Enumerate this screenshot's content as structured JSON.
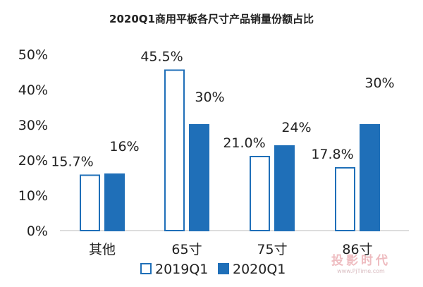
{
  "chart_data": {
    "type": "bar",
    "title": "2020Q1商用平板各尺寸产品销量份额占比",
    "categories": [
      "其他",
      "65寸",
      "75寸",
      "86寸"
    ],
    "series": [
      {
        "name": "2019Q1",
        "values": [
          15.7,
          45.5,
          21.0,
          17.8
        ],
        "labels": [
          "15.7%",
          "45.5%",
          "21.0%",
          "17.8%"
        ],
        "color": "#ffffff",
        "stroke": "#1f6fb8"
      },
      {
        "name": "2020Q1",
        "values": [
          16,
          30,
          24,
          30
        ],
        "labels": [
          "16%",
          "30%",
          "24%",
          "30%"
        ],
        "color": "#1f6fb8"
      }
    ],
    "yticks": [
      "0%",
      "10%",
      "20%",
      "30%",
      "40%",
      "50%"
    ],
    "ylim": [
      0,
      50
    ],
    "grid": false,
    "legend": "bottom"
  },
  "watermark": {
    "text": "投影时代",
    "url": "www.PjTime.com"
  }
}
